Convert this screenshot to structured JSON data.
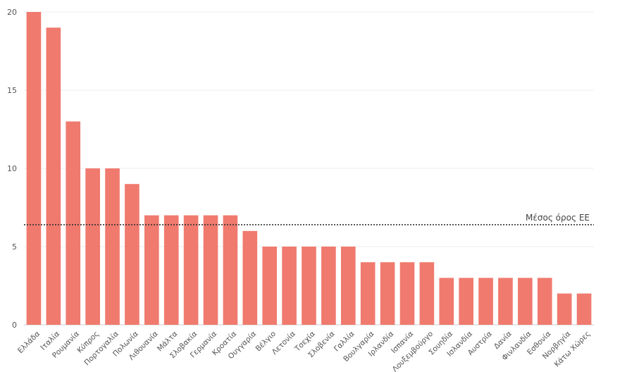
{
  "chart_data": {
    "type": "bar",
    "title": "",
    "xlabel": "",
    "ylabel": "",
    "ylim": [
      0,
      20
    ],
    "yticks": [
      0,
      5,
      10,
      15,
      20
    ],
    "grid": "horizontal",
    "bar_color": "#f07a6e",
    "categories": [
      "Ελλάδα",
      "Ιταλία",
      "Ρουμανία",
      "Κύπρος",
      "Πορτογαλία",
      "Πολωνία",
      "Λιθουανία",
      "Μάλτα",
      "Σλοβακία",
      "Γερμανία",
      "Κροατία",
      "Ουγγαρία",
      "Βέλγιο",
      "Λετονία",
      "Τσεχία",
      "Σλοβενία",
      "Γαλλία",
      "Βουλγαρία",
      "Ιρλανδία",
      "Ισπανία",
      "Λουξεμβούργο",
      "Σουηδία",
      "Ισλανδία",
      "Αυστρία",
      "Δανία",
      "Φινλανδία",
      "Εσθονία",
      "Νορβηγία",
      "Κάτω Χώρες"
    ],
    "values": [
      20,
      19,
      13,
      10,
      10,
      9,
      7,
      7,
      7,
      7,
      7,
      6,
      5,
      5,
      5,
      5,
      5,
      4,
      4,
      4,
      4,
      3,
      3,
      3,
      3,
      3,
      3,
      2,
      2
    ],
    "reference_line": {
      "label": "Μέσος όρος ΕΕ",
      "value": 6.4,
      "style": "dotted",
      "color": "#333333"
    }
  }
}
